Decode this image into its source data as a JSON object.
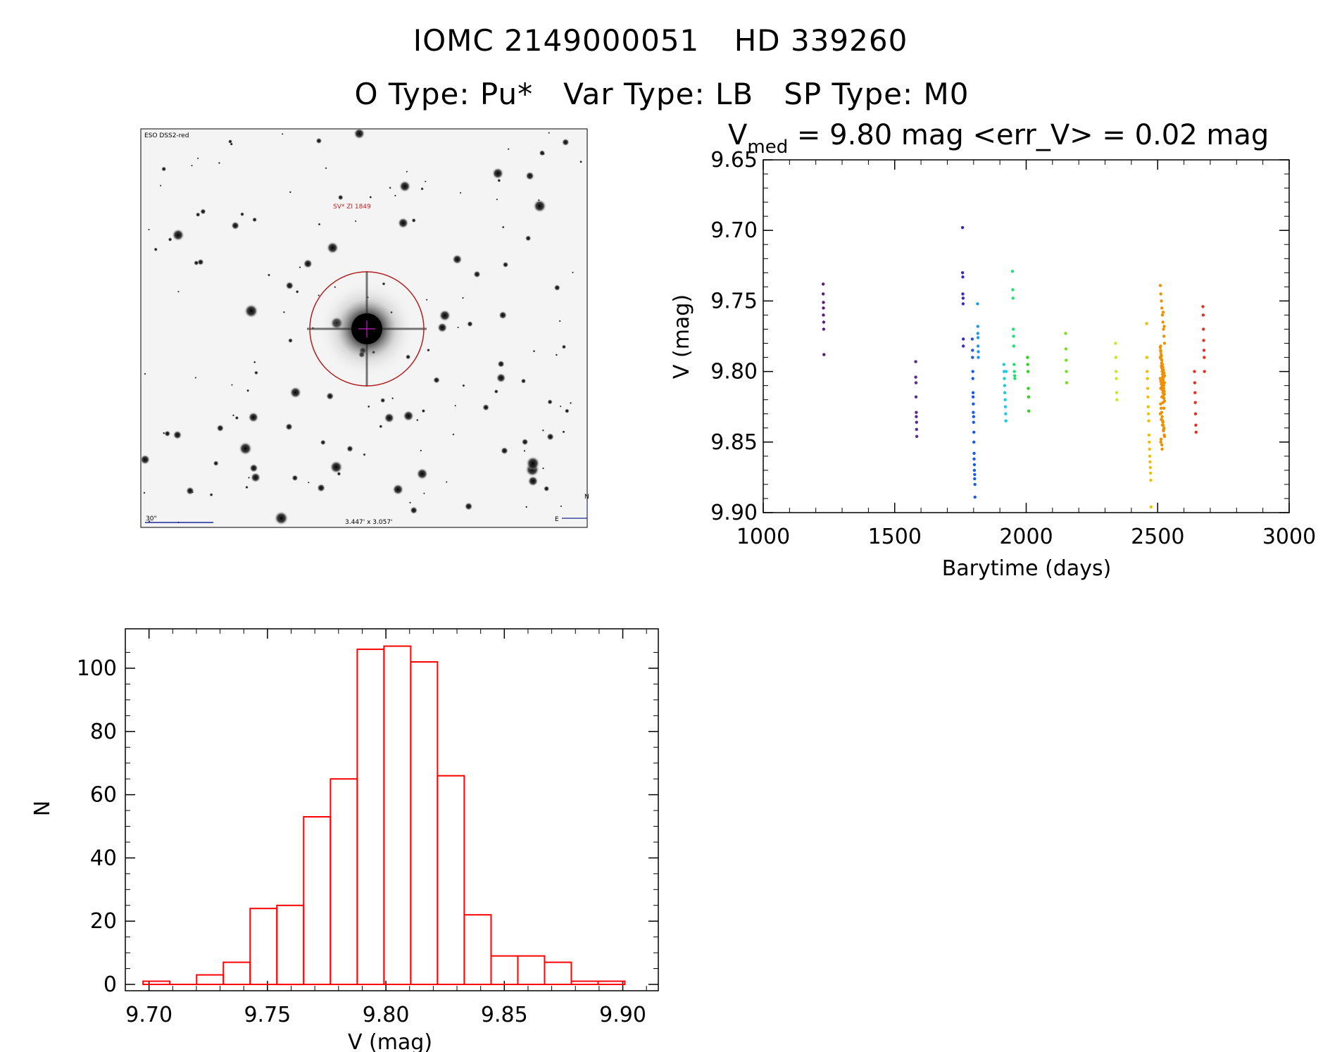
{
  "header": {
    "line1_left": "IOMC 2149000051",
    "line1_right": "HD 339260",
    "line2": "O Type: Pu*   Var Type: LB   SP Type: M0"
  },
  "sky_image": {
    "survey_label": "ESO DSS2-red",
    "object_label": "SV* ZI 1849",
    "scale_label": "30\"",
    "size_label": "3.447' x 3.057'",
    "compass_north": "N",
    "compass_east": "E"
  },
  "lightcurve": {
    "title_prefix": "V",
    "title_subscript": "med",
    "title_rest": " = 9.80 mag <err_V> = 0.02 mag"
  },
  "chart_data": [
    {
      "type": "scatter",
      "title": "V med = 9.80 mag <err_V> = 0.02 mag",
      "xlabel": "Barytime (days)",
      "ylabel": "V (mag)",
      "xlim": [
        1000,
        3000
      ],
      "ylim": [
        9.9,
        9.65
      ],
      "y_inverted": true,
      "x_ticks": [
        "1000",
        "1500",
        "2000",
        "2500",
        "3000"
      ],
      "y_ticks": [
        "9.65",
        "9.70",
        "9.75",
        "9.80",
        "9.85",
        "9.90"
      ],
      "series": [
        {
          "color": "#5a1a80",
          "x": [
            1228,
            1228,
            1229,
            1229,
            1229,
            1230,
            1230,
            1231
          ],
          "y": [
            9.738,
            9.745,
            9.751,
            9.755,
            9.76,
            9.765,
            9.77,
            9.788
          ]
        },
        {
          "color": "#5a2a90",
          "x": [
            1580,
            1580,
            1581,
            1581,
            1582,
            1582,
            1583,
            1583,
            1584
          ],
          "y": [
            9.793,
            9.804,
            9.808,
            9.818,
            9.829,
            9.832,
            9.836,
            9.841,
            9.846
          ]
        },
        {
          "color": "#3a2ac0",
          "x": [
            1758,
            1758,
            1759,
            1759,
            1760,
            1760,
            1761,
            1761
          ],
          "y": [
            9.698,
            9.73,
            9.733,
            9.745,
            9.748,
            9.752,
            9.777,
            9.782
          ]
        },
        {
          "color": "#1a5ae8",
          "x": [
            1795,
            1796,
            1796,
            1797,
            1797,
            1798,
            1798,
            1799,
            1799,
            1800,
            1800,
            1801,
            1801,
            1802,
            1802,
            1803,
            1803,
            1804,
            1804,
            1805,
            1805
          ],
          "y": [
            9.777,
            9.785,
            9.79,
            9.8,
            9.805,
            9.815,
            9.818,
            9.823,
            9.829,
            9.832,
            9.836,
            9.843,
            9.85,
            9.858,
            9.862,
            9.866,
            9.87,
            9.873,
            9.876,
            9.88,
            9.889
          ]
        },
        {
          "color": "#1a9aee",
          "x": [
            1815,
            1816,
            1816,
            1817,
            1817,
            1818,
            1818
          ],
          "y": [
            9.752,
            9.768,
            9.773,
            9.776,
            9.782,
            9.786,
            9.79
          ]
        },
        {
          "color": "#20c8e0",
          "x": [
            1915,
            1916,
            1917,
            1918,
            1919,
            1920,
            1921,
            1922,
            1923,
            1924
          ],
          "y": [
            9.795,
            9.8,
            9.805,
            9.81,
            9.815,
            9.82,
            9.825,
            9.83,
            9.835,
            9.8
          ]
        },
        {
          "color": "#20e070",
          "x": [
            1948,
            1949,
            1950,
            1951,
            1952,
            1953,
            1954,
            1955,
            1956,
            1957
          ],
          "y": [
            9.729,
            9.742,
            9.748,
            9.77,
            9.775,
            9.782,
            9.795,
            9.8,
            9.803,
            9.805
          ]
        },
        {
          "color": "#30d020",
          "x": [
            2005,
            2006,
            2007,
            2008,
            2009,
            2010
          ],
          "y": [
            9.79,
            9.795,
            9.8,
            9.812,
            9.818,
            9.828
          ]
        },
        {
          "color": "#70e020",
          "x": [
            2150,
            2151,
            2152,
            2153,
            2154
          ],
          "y": [
            9.773,
            9.784,
            9.792,
            9.8,
            9.808
          ]
        },
        {
          "color": "#c8e820",
          "x": [
            2340,
            2341,
            2342,
            2343,
            2344,
            2345
          ],
          "y": [
            9.78,
            9.79,
            9.8,
            9.805,
            9.815,
            9.82
          ]
        },
        {
          "color": "#f0c000",
          "x": [
            2458,
            2459,
            2460,
            2461,
            2462,
            2463,
            2464,
            2465,
            2466,
            2467,
            2468,
            2469,
            2470,
            2471,
            2472,
            2473,
            2474,
            2475
          ],
          "y": [
            9.766,
            9.79,
            9.8,
            9.805,
            9.812,
            9.818,
            9.825,
            9.83,
            9.835,
            9.845,
            9.85,
            9.855,
            9.86,
            9.864,
            9.868,
            9.872,
            9.877,
            9.896
          ]
        },
        {
          "color": "#f09000",
          "x": [
            2510,
            2512,
            2514,
            2516,
            2518,
            2520,
            2522,
            2524,
            2526,
            2510,
            2512,
            2514,
            2516,
            2518,
            2520,
            2522,
            2524,
            2526,
            2510,
            2512,
            2514,
            2516,
            2518,
            2520,
            2522,
            2524,
            2526,
            2511,
            2513,
            2515,
            2517,
            2519,
            2521,
            2523,
            2525,
            2511,
            2513,
            2515,
            2517,
            2519,
            2521,
            2523,
            2525,
            2511,
            2513,
            2515,
            2517,
            2519,
            2521,
            2523,
            2525,
            2510,
            2514,
            2518,
            2522,
            2526,
            2512,
            2516,
            2520,
            2524,
            2510,
            2514,
            2518,
            2522,
            2526,
            2512,
            2516,
            2520,
            2524,
            2513,
            2517,
            2521,
            2525
          ],
          "y": [
            9.739,
            9.745,
            9.75,
            9.755,
            9.76,
            9.765,
            9.77,
            9.775,
            9.78,
            9.783,
            9.786,
            9.789,
            9.792,
            9.795,
            9.797,
            9.799,
            9.801,
            9.803,
            9.805,
            9.807,
            9.809,
            9.811,
            9.813,
            9.815,
            9.817,
            9.819,
            9.821,
            9.782,
            9.788,
            9.794,
            9.798,
            9.802,
            9.806,
            9.81,
            9.814,
            9.785,
            9.791,
            9.797,
            9.8,
            9.804,
            9.808,
            9.812,
            9.816,
            9.823,
            9.826,
            9.829,
            9.832,
            9.835,
            9.838,
            9.841,
            9.845,
            9.79,
            9.796,
            9.8,
            9.804,
            9.808,
            9.812,
            9.818,
            9.822,
            9.826,
            9.83,
            9.834,
            9.838,
            9.842,
            9.846,
            9.85,
            9.852,
            9.836,
            9.84,
            9.848,
            9.855,
            9.758,
            9.768
          ]
        },
        {
          "color": "#e83020",
          "x": [
            2640,
            2641,
            2642,
            2643,
            2644,
            2645,
            2646,
            2672,
            2673,
            2674,
            2675,
            2676,
            2677,
            2678
          ],
          "y": [
            9.8,
            9.808,
            9.815,
            9.822,
            9.83,
            9.838,
            9.843,
            9.754,
            9.76,
            9.77,
            9.778,
            9.785,
            9.79,
            9.8
          ]
        }
      ]
    },
    {
      "type": "bar",
      "title": "",
      "xlabel": "V (mag)",
      "ylabel": "N",
      "xlim": [
        9.69,
        9.915
      ],
      "ylim": [
        0,
        110
      ],
      "x_ticks": [
        "9.70",
        "9.75",
        "9.80",
        "9.85",
        "9.90"
      ],
      "y_ticks": [
        "0",
        "20",
        "40",
        "60",
        "80",
        "100"
      ],
      "bin_edges": [
        9.6975,
        9.7088,
        9.7201,
        9.7314,
        9.7427,
        9.754,
        9.7653,
        9.7766,
        9.7879,
        9.7992,
        9.8105,
        9.8218,
        9.8331,
        9.8444,
        9.8557,
        9.867,
        9.8783,
        9.8896,
        9.9009
      ],
      "values": [
        1,
        0,
        3,
        7,
        24,
        25,
        53,
        65,
        106,
        107,
        102,
        66,
        22,
        9,
        9,
        7,
        1,
        1
      ],
      "color": "#ff0000"
    }
  ]
}
